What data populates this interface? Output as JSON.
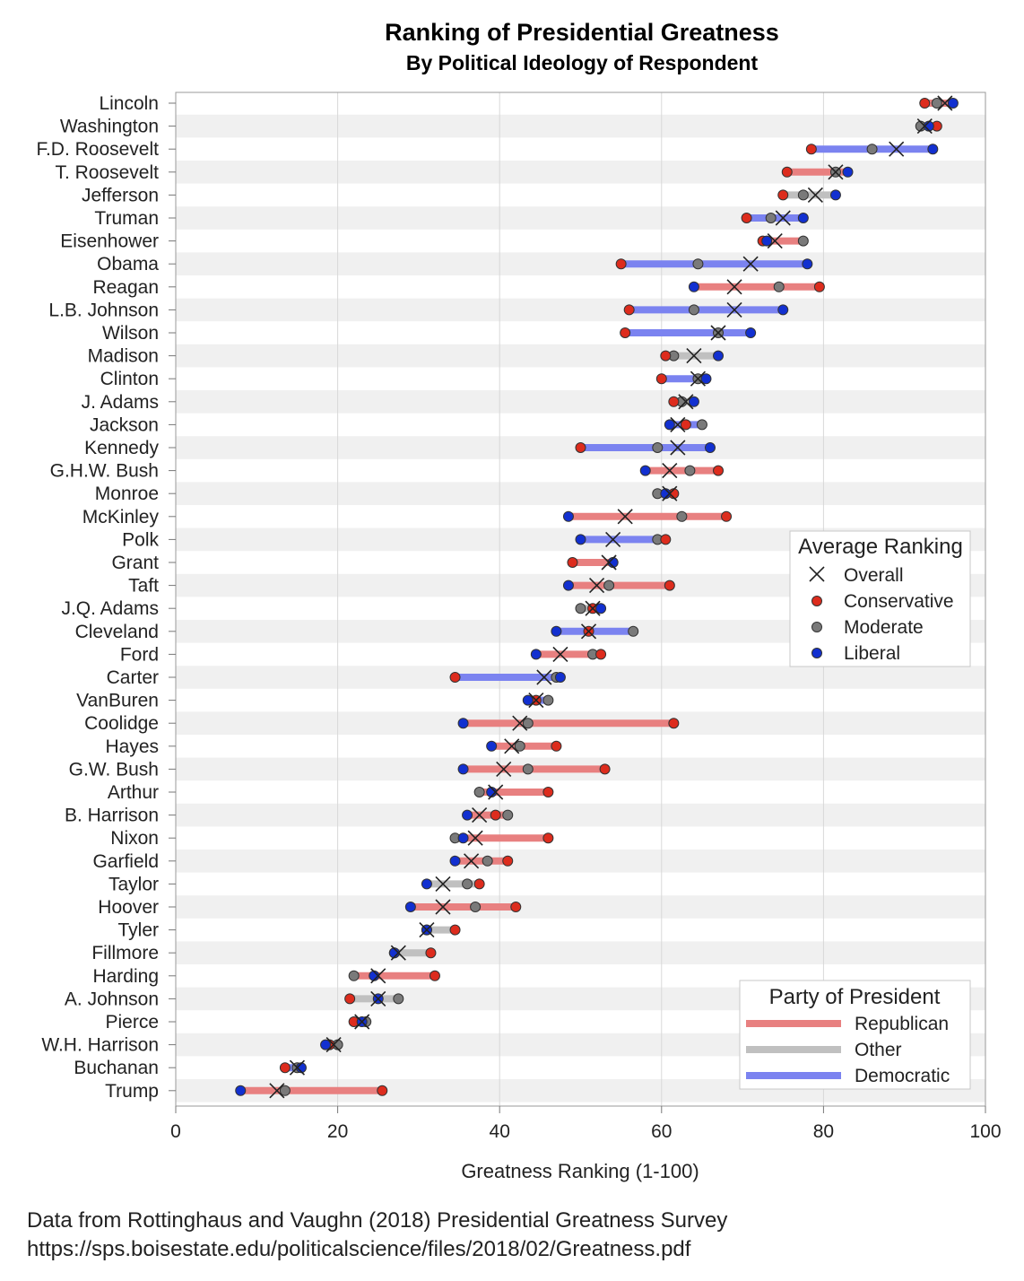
{
  "chart_data": {
    "type": "dot-range",
    "title": "Ranking of Presidential Greatness",
    "subtitle": "By Political Ideology of Respondent",
    "xlabel": "Greatness Ranking (1-100)",
    "xlim": [
      0,
      100
    ],
    "xticks": [
      0,
      20,
      40,
      60,
      80,
      100
    ],
    "grid": true,
    "colors": {
      "Republican": "#e88080",
      "Other": "#c0c0c0",
      "Democratic": "#7b83f0",
      "Conservative": "#dd2c1d",
      "Moderate": "#7a7a7a",
      "Liberal": "#1230d0",
      "band": "#f0f0f0"
    },
    "legend_ranking": {
      "title": "Average Ranking",
      "position": "right-middle",
      "entries": [
        "Overall",
        "Conservative",
        "Moderate",
        "Liberal"
      ]
    },
    "legend_party": {
      "title": "Party of President",
      "position": "bottom-right",
      "entries": [
        "Republican",
        "Other",
        "Democratic"
      ]
    },
    "presidents": [
      {
        "name": "Lincoln",
        "party": "Republican",
        "overall": 95,
        "conservative": 92.5,
        "moderate": 94,
        "liberal": 96
      },
      {
        "name": "Washington",
        "party": "Other",
        "overall": 92.5,
        "conservative": 94,
        "moderate": 92,
        "liberal": 93
      },
      {
        "name": "F.D. Roosevelt",
        "party": "Democratic",
        "overall": 89,
        "conservative": 78.5,
        "moderate": 86,
        "liberal": 93.5
      },
      {
        "name": "T. Roosevelt",
        "party": "Republican",
        "overall": 81.5,
        "conservative": 75.5,
        "moderate": 81.5,
        "liberal": 83
      },
      {
        "name": "Jefferson",
        "party": "Other",
        "overall": 79,
        "conservative": 75,
        "moderate": 77.5,
        "liberal": 81.5
      },
      {
        "name": "Truman",
        "party": "Democratic",
        "overall": 75,
        "conservative": 70.5,
        "moderate": 73.5,
        "liberal": 77.5
      },
      {
        "name": "Eisenhower",
        "party": "Republican",
        "overall": 74,
        "conservative": 72.5,
        "moderate": 77.5,
        "liberal": 73
      },
      {
        "name": "Obama",
        "party": "Democratic",
        "overall": 71,
        "conservative": 55,
        "moderate": 64.5,
        "liberal": 78
      },
      {
        "name": "Reagan",
        "party": "Republican",
        "overall": 69,
        "conservative": 79.5,
        "moderate": 74.5,
        "liberal": 64
      },
      {
        "name": "L.B. Johnson",
        "party": "Democratic",
        "overall": 69,
        "conservative": 56,
        "moderate": 64,
        "liberal": 75
      },
      {
        "name": "Wilson",
        "party": "Democratic",
        "overall": 67,
        "conservative": 55.5,
        "moderate": 67,
        "liberal": 71
      },
      {
        "name": "Madison",
        "party": "Other",
        "overall": 64,
        "conservative": 60.5,
        "moderate": 61.5,
        "liberal": 67
      },
      {
        "name": "Clinton",
        "party": "Democratic",
        "overall": 64.5,
        "conservative": 60,
        "moderate": 64.5,
        "liberal": 65.5
      },
      {
        "name": "J. Adams",
        "party": "Other",
        "overall": 63,
        "conservative": 61.5,
        "moderate": 62.5,
        "liberal": 64
      },
      {
        "name": "Jackson",
        "party": "Democratic",
        "overall": 62,
        "conservative": 63,
        "moderate": 65,
        "liberal": 61
      },
      {
        "name": "Kennedy",
        "party": "Democratic",
        "overall": 62,
        "conservative": 50,
        "moderate": 59.5,
        "liberal": 66
      },
      {
        "name": "G.H.W. Bush",
        "party": "Republican",
        "overall": 61,
        "conservative": 67,
        "moderate": 63.5,
        "liberal": 58
      },
      {
        "name": "Monroe",
        "party": "Other",
        "overall": 61,
        "conservative": 61.5,
        "moderate": 59.5,
        "liberal": 60.5
      },
      {
        "name": "McKinley",
        "party": "Republican",
        "overall": 55.5,
        "conservative": 68,
        "moderate": 62.5,
        "liberal": 48.5
      },
      {
        "name": "Polk",
        "party": "Democratic",
        "overall": 54,
        "conservative": 60.5,
        "moderate": 59.5,
        "liberal": 50
      },
      {
        "name": "Grant",
        "party": "Republican",
        "overall": 53.5,
        "conservative": 49,
        "moderate": 54,
        "liberal": 54
      },
      {
        "name": "Taft",
        "party": "Republican",
        "overall": 52,
        "conservative": 61,
        "moderate": 53.5,
        "liberal": 48.5
      },
      {
        "name": "J.Q. Adams",
        "party": "Other",
        "overall": 51.5,
        "conservative": 51.5,
        "moderate": 50,
        "liberal": 52.5
      },
      {
        "name": "Cleveland",
        "party": "Democratic",
        "overall": 51,
        "conservative": 51,
        "moderate": 56.5,
        "liberal": 47
      },
      {
        "name": "Ford",
        "party": "Republican",
        "overall": 47.5,
        "conservative": 52.5,
        "moderate": 51.5,
        "liberal": 44.5
      },
      {
        "name": "Carter",
        "party": "Democratic",
        "overall": 45.5,
        "conservative": 34.5,
        "moderate": 47,
        "liberal": 47.5
      },
      {
        "name": "VanBuren",
        "party": "Democratic",
        "overall": 44.5,
        "conservative": 44.5,
        "moderate": 46,
        "liberal": 43.5
      },
      {
        "name": "Coolidge",
        "party": "Republican",
        "overall": 42.5,
        "conservative": 61.5,
        "moderate": 43.5,
        "liberal": 35.5
      },
      {
        "name": "Hayes",
        "party": "Republican",
        "overall": 41.5,
        "conservative": 47,
        "moderate": 42.5,
        "liberal": 39
      },
      {
        "name": "G.W. Bush",
        "party": "Republican",
        "overall": 40.5,
        "conservative": 53,
        "moderate": 43.5,
        "liberal": 35.5
      },
      {
        "name": "Arthur",
        "party": "Republican",
        "overall": 39.5,
        "conservative": 46,
        "moderate": 37.5,
        "liberal": 39
      },
      {
        "name": "B. Harrison",
        "party": "Republican",
        "overall": 37.5,
        "conservative": 39.5,
        "moderate": 41,
        "liberal": 36
      },
      {
        "name": "Nixon",
        "party": "Republican",
        "overall": 37,
        "conservative": 46,
        "moderate": 34.5,
        "liberal": 35.5
      },
      {
        "name": "Garfield",
        "party": "Republican",
        "overall": 36.5,
        "conservative": 41,
        "moderate": 38.5,
        "liberal": 34.5
      },
      {
        "name": "Taylor",
        "party": "Other",
        "overall": 33,
        "conservative": 37.5,
        "moderate": 36,
        "liberal": 31
      },
      {
        "name": "Hoover",
        "party": "Republican",
        "overall": 33,
        "conservative": 42,
        "moderate": 37,
        "liberal": 29
      },
      {
        "name": "Tyler",
        "party": "Other",
        "overall": 31,
        "conservative": 34.5,
        "moderate": 31,
        "liberal": 31
      },
      {
        "name": "Fillmore",
        "party": "Other",
        "overall": 27.5,
        "conservative": 31.5,
        "moderate": 27,
        "liberal": 27
      },
      {
        "name": "Harding",
        "party": "Republican",
        "overall": 25,
        "conservative": 32,
        "moderate": 22,
        "liberal": 24.5
      },
      {
        "name": "A. Johnson",
        "party": "Other",
        "overall": 25,
        "conservative": 21.5,
        "moderate": 27.5,
        "liberal": 25
      },
      {
        "name": "Pierce",
        "party": "Democratic",
        "overall": 23,
        "conservative": 22,
        "moderate": 23.5,
        "liberal": 23
      },
      {
        "name": "W.H. Harrison",
        "party": "Other",
        "overall": 19.5,
        "conservative": 19,
        "moderate": 20,
        "liberal": 18.5
      },
      {
        "name": "Buchanan",
        "party": "Democratic",
        "overall": 15,
        "conservative": 13.5,
        "moderate": 15,
        "liberal": 15.5
      },
      {
        "name": "Trump",
        "party": "Republican",
        "overall": 12.5,
        "conservative": 25.5,
        "moderate": 13.5,
        "liberal": 8
      }
    ]
  },
  "footer": {
    "source_line": "Data from Rottinghaus and Vaughn (2018) Presidential Greatness Survey",
    "url_line": "https://sps.boisestate.edu/politicalscience/files/2018/02/Greatness.pdf"
  }
}
